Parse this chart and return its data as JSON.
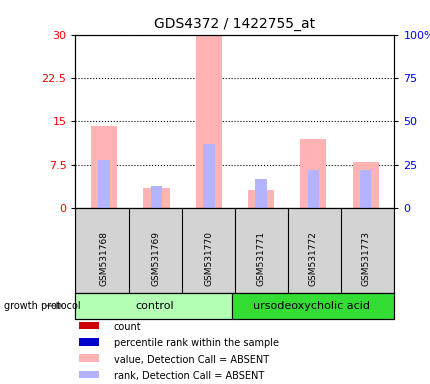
{
  "title": "GDS4372 / 1422755_at",
  "samples": [
    "GSM531768",
    "GSM531769",
    "GSM531770",
    "GSM531771",
    "GSM531772",
    "GSM531773"
  ],
  "value_absent": [
    14.2,
    3.5,
    30.0,
    3.2,
    12.0,
    8.0
  ],
  "rank_absent_pct": [
    28.0,
    13.0,
    37.0,
    17.0,
    22.0,
    22.0
  ],
  "left_yticks": [
    0,
    7.5,
    15,
    22.5,
    30
  ],
  "left_ylim": [
    0,
    30
  ],
  "right_yticks": [
    0,
    25,
    50,
    75,
    100
  ],
  "right_ylim": [
    0,
    100
  ],
  "color_value_absent": "#ffb3b3",
  "color_rank_absent": "#b3b3ff",
  "color_count": "#cc0000",
  "color_percentile": "#0000cc",
  "ctrl_color": "#b3ffb3",
  "urso_color": "#33dd33",
  "sample_bg": "#d3d3d3",
  "plot_bg": "#ffffff",
  "growth_protocol_label": "growth protocol"
}
